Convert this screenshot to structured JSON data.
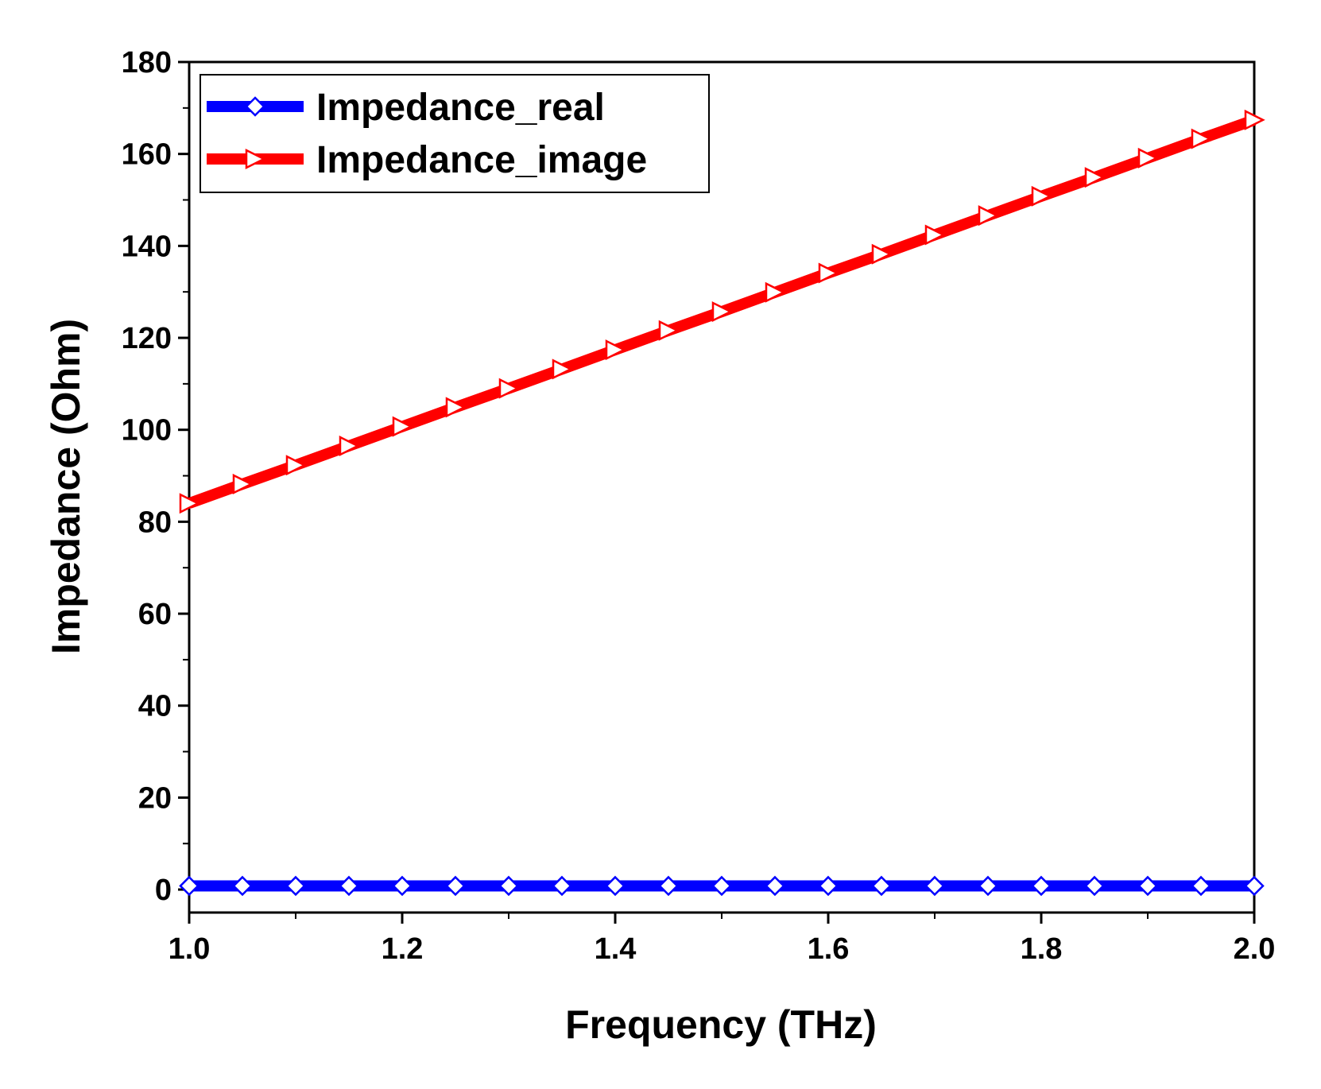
{
  "chart_data": {
    "type": "line",
    "title": "",
    "xlabel": "Frequency (THz)",
    "ylabel": "Impedance (Ohm)",
    "xlim": [
      1.0,
      2.0
    ],
    "ylim": [
      -5,
      180
    ],
    "xticks": [
      "1.0",
      "1.2",
      "1.4",
      "1.6",
      "1.8",
      "2.0"
    ],
    "yticks": [
      "0",
      "20",
      "40",
      "60",
      "80",
      "100",
      "120",
      "140",
      "160",
      "180"
    ],
    "grid": false,
    "legend_position": "top-left",
    "x": [
      1.0,
      1.05,
      1.1,
      1.15,
      1.2,
      1.25,
      1.3,
      1.35,
      1.4,
      1.45,
      1.5,
      1.55,
      1.6,
      1.65,
      1.7,
      1.75,
      1.8,
      1.85,
      1.9,
      1.95,
      2.0
    ],
    "series": [
      {
        "name": "Impedance_real",
        "color": "#0000ff",
        "marker": "diamond",
        "values": [
          0.8,
          0.8,
          0.8,
          0.8,
          0.8,
          0.8,
          0.8,
          0.8,
          0.8,
          0.8,
          0.8,
          0.8,
          0.8,
          0.8,
          0.8,
          0.8,
          0.8,
          0.8,
          0.8,
          0.8,
          0.8
        ]
      },
      {
        "name": "Impedance_image",
        "color": "#ff0000",
        "marker": "triangle-right",
        "values": [
          84.0,
          88.2,
          92.3,
          96.5,
          100.7,
          104.9,
          109.0,
          113.2,
          117.4,
          121.6,
          125.7,
          129.9,
          134.1,
          138.2,
          142.4,
          146.6,
          150.8,
          154.9,
          159.1,
          163.3,
          167.4
        ]
      }
    ]
  }
}
